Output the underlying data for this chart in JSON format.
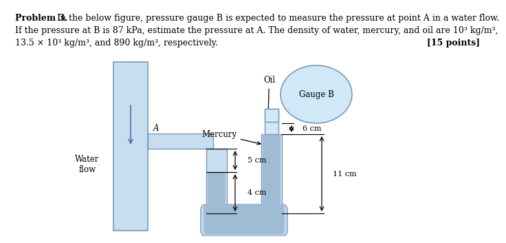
{
  "bg_color": "#ffffff",
  "pipe_color": "#c8ddf0",
  "pipe_border": "#7a9ab5",
  "mercury_color": "#a0bcd4",
  "gauge_color": "#d0e8f8",
  "label_oil": "Oil",
  "label_mercury": "Mercury",
  "label_gauge": "Gauge B",
  "label_A": "A",
  "label_water": "Water\nflow",
  "label_5cm": "5 cm",
  "label_4cm": "4 cm",
  "label_6cm": "6 cm",
  "label_11cm": "11 cm",
  "text_line1_bold": "Problem 3.",
  "text_line1_rest": " In the below figure, pressure gauge B is expected to measure the pressure at point A in a water flow.",
  "text_line2": "If the pressure at B is 87 kPa, estimate the pressure at A. The density of water, mercury, and oil are 10³ kg/m³,",
  "text_line3": "13.5 × 10³ kg/m³, and 890 kg/m³, respectively.",
  "text_points": "[15 points]",
  "fontsize_text": 9,
  "fontsize_label": 8.5,
  "fontsize_dim": 8
}
